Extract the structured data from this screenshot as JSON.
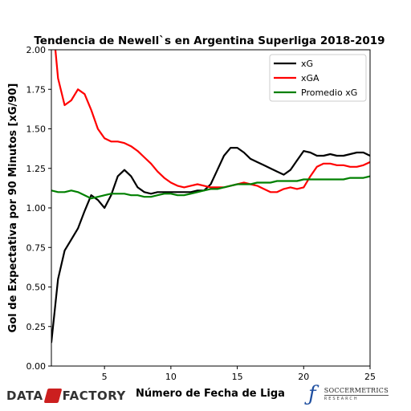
{
  "chart_data": {
    "type": "line",
    "title": "Tendencia de Newell`s en Argentina Superliga 2018-2019",
    "xlabel": "Número de Fecha de Liga",
    "ylabel": "Gol de Expectativa por 90 Minutos [xG/90]",
    "xlim": [
      1,
      25
    ],
    "ylim": [
      0.0,
      2.0
    ],
    "xticks": [
      5,
      10,
      15,
      20,
      25
    ],
    "xtick_labels": [
      "5",
      "10",
      "15",
      "20",
      "25"
    ],
    "yticks": [
      0.0,
      0.25,
      0.5,
      0.75,
      1.0,
      1.25,
      1.5,
      1.75,
      2.0
    ],
    "ytick_labels": [
      "0.00",
      "0.25",
      "0.50",
      "0.75",
      "1.00",
      "1.25",
      "1.50",
      "1.75",
      "2.00"
    ],
    "grid": false,
    "legend_position": "top-right",
    "series": [
      {
        "name": "xG",
        "color": "#000000",
        "x": [
          1,
          1.5,
          2,
          2.5,
          3,
          3.5,
          4,
          4.5,
          5,
          5.5,
          6,
          6.5,
          7,
          7.5,
          8,
          8.5,
          9,
          9.5,
          10,
          10.5,
          11,
          11.5,
          12,
          12.5,
          13,
          13.5,
          14,
          14.5,
          15,
          15.5,
          16,
          16.5,
          17,
          17.5,
          18,
          18.5,
          19,
          19.5,
          20,
          20.5,
          21,
          21.5,
          22,
          22.5,
          23,
          23.5,
          24,
          24.5,
          25
        ],
        "y": [
          0.15,
          0.55,
          0.73,
          0.8,
          0.87,
          0.98,
          1.08,
          1.05,
          1.0,
          1.08,
          1.2,
          1.24,
          1.2,
          1.13,
          1.1,
          1.09,
          1.1,
          1.1,
          1.1,
          1.1,
          1.1,
          1.1,
          1.11,
          1.11,
          1.15,
          1.24,
          1.33,
          1.38,
          1.38,
          1.35,
          1.31,
          1.29,
          1.27,
          1.25,
          1.23,
          1.21,
          1.24,
          1.3,
          1.36,
          1.35,
          1.33,
          1.33,
          1.34,
          1.33,
          1.33,
          1.34,
          1.35,
          1.35,
          1.33
        ]
      },
      {
        "name": "xGA",
        "color": "#ff0000",
        "x": [
          1,
          1.25,
          1.5,
          2,
          2.5,
          3,
          3.5,
          4,
          4.5,
          5,
          5.5,
          6,
          6.5,
          7,
          7.5,
          8,
          8.5,
          9,
          9.5,
          10,
          10.5,
          11,
          11.5,
          12,
          12.5,
          13,
          13.5,
          14,
          14.5,
          15,
          15.5,
          16,
          16.5,
          17,
          17.5,
          18,
          18.5,
          19,
          19.5,
          20,
          20.5,
          21,
          21.5,
          22,
          22.5,
          23,
          23.5,
          24,
          24.5,
          25
        ],
        "y": [
          2.3,
          2.05,
          1.82,
          1.65,
          1.68,
          1.75,
          1.72,
          1.62,
          1.5,
          1.44,
          1.42,
          1.42,
          1.41,
          1.39,
          1.36,
          1.32,
          1.28,
          1.23,
          1.19,
          1.16,
          1.14,
          1.13,
          1.14,
          1.15,
          1.14,
          1.13,
          1.13,
          1.13,
          1.14,
          1.15,
          1.16,
          1.15,
          1.14,
          1.12,
          1.1,
          1.1,
          1.12,
          1.13,
          1.12,
          1.13,
          1.2,
          1.26,
          1.28,
          1.28,
          1.27,
          1.27,
          1.26,
          1.26,
          1.27,
          1.29
        ]
      },
      {
        "name": "Promedio xG",
        "color": "#008000",
        "x": [
          1,
          1.5,
          2,
          2.5,
          3,
          3.5,
          4,
          4.5,
          5,
          5.5,
          6,
          6.5,
          7,
          7.5,
          8,
          8.5,
          9,
          9.5,
          10,
          10.5,
          11,
          11.5,
          12,
          12.5,
          13,
          13.5,
          14,
          14.5,
          15,
          15.5,
          16,
          16.5,
          17,
          17.5,
          18,
          18.5,
          19,
          19.5,
          20,
          20.5,
          21,
          21.5,
          22,
          22.5,
          23,
          23.5,
          24,
          24.5,
          25
        ],
        "y": [
          1.11,
          1.1,
          1.1,
          1.11,
          1.1,
          1.08,
          1.06,
          1.07,
          1.08,
          1.09,
          1.09,
          1.09,
          1.08,
          1.08,
          1.07,
          1.07,
          1.08,
          1.09,
          1.09,
          1.08,
          1.08,
          1.09,
          1.1,
          1.11,
          1.12,
          1.12,
          1.13,
          1.14,
          1.15,
          1.15,
          1.15,
          1.16,
          1.16,
          1.16,
          1.17,
          1.17,
          1.17,
          1.17,
          1.18,
          1.18,
          1.18,
          1.18,
          1.18,
          1.18,
          1.18,
          1.19,
          1.19,
          1.19,
          1.2
        ]
      }
    ]
  },
  "footer": {
    "brand_left_part1": "DATA",
    "brand_left_part2": "FACTORY",
    "brand_right_icon": "ƒ",
    "brand_right_name": "SOCCERMETRICS",
    "brand_right_sub": "RESEARCH"
  }
}
